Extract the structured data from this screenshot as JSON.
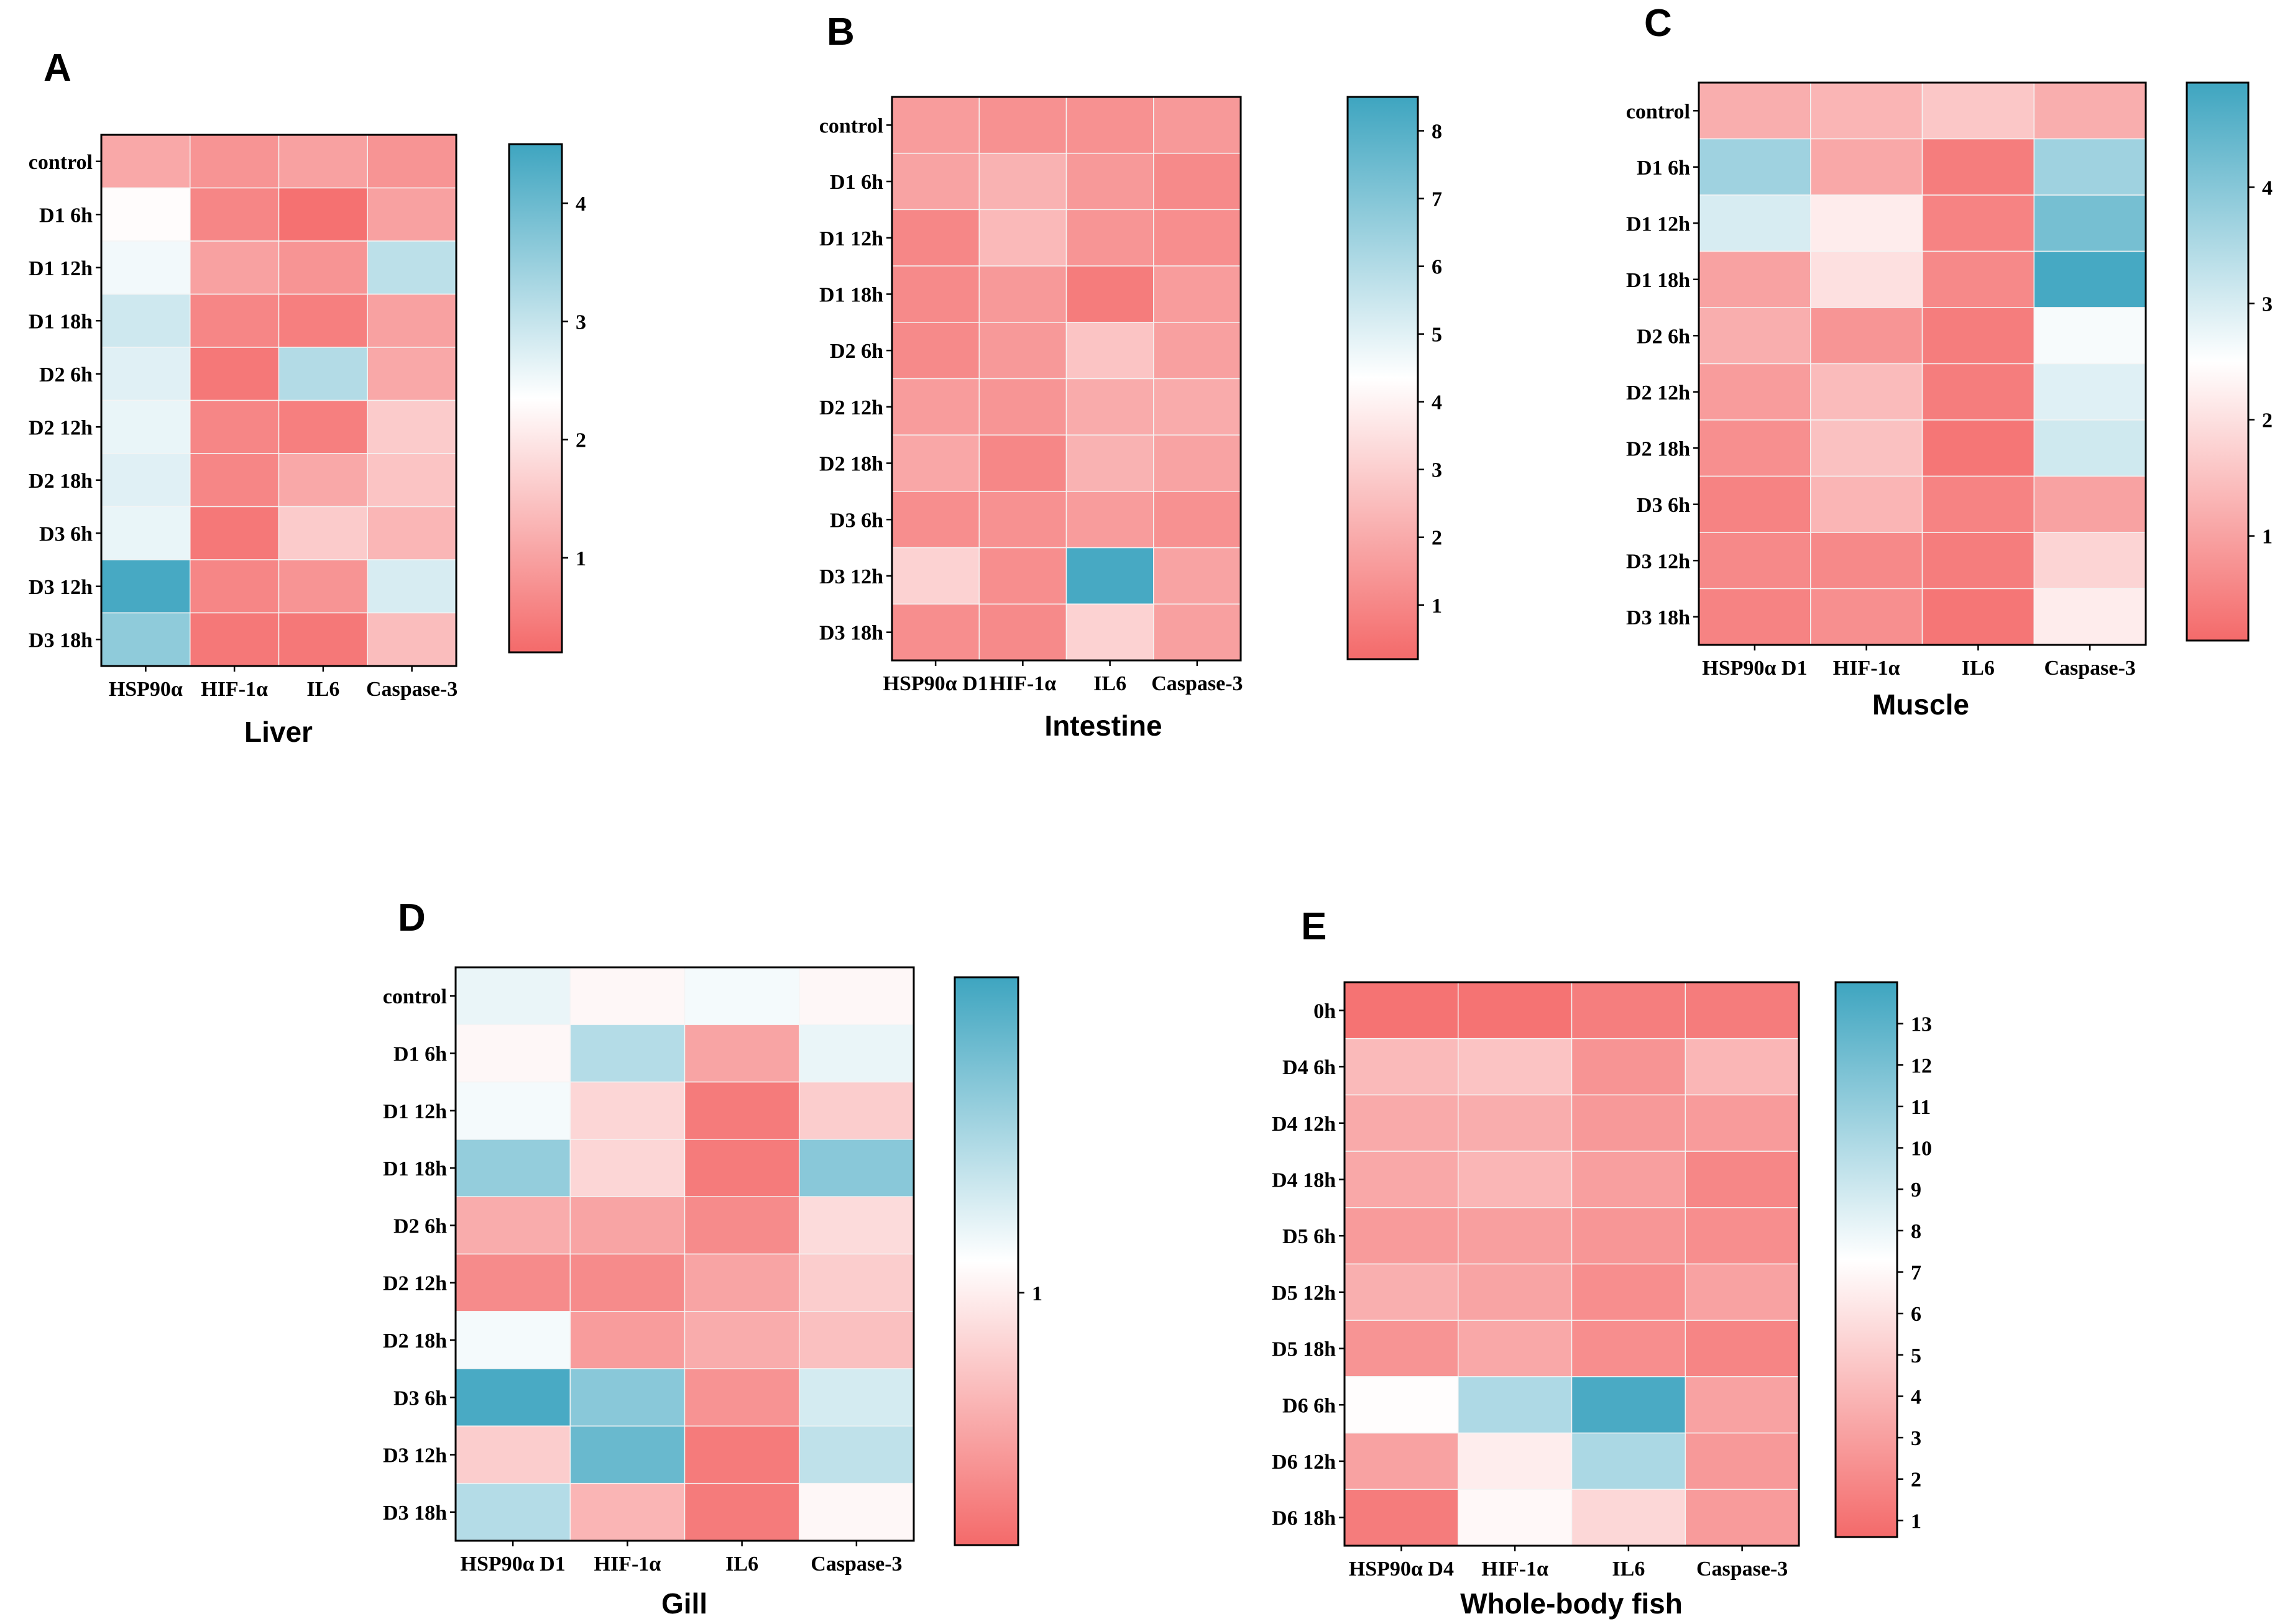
{
  "colors": {
    "low": "#f46a6a",
    "mid": "#ffffff",
    "high": "#3ea5c0"
  },
  "chart_data": [
    {
      "type": "heatmap",
      "panel": "A",
      "title": "Liver",
      "rows": [
        "control",
        "D1 6h",
        "D1 12h",
        "D1 18h",
        "D2 6h",
        "D2 12h",
        "D2 18h",
        "D3 6h",
        "D3 12h",
        "D3 18h"
      ],
      "columns": [
        "HSP90α",
        "HIF-1α",
        "IL6",
        "Caspase-3"
      ],
      "values": [
        [
          1.1,
          0.8,
          1.0,
          0.8
        ],
        [
          2.3,
          0.6,
          0.3,
          1.0
        ],
        [
          2.5,
          1.0,
          0.8,
          3.1
        ],
        [
          2.9,
          0.6,
          0.5,
          1.0
        ],
        [
          2.7,
          0.4,
          3.2,
          1.1
        ],
        [
          2.6,
          0.6,
          0.5,
          1.6
        ],
        [
          2.7,
          0.6,
          1.1,
          1.5
        ],
        [
          2.6,
          0.4,
          1.6,
          1.3
        ],
        [
          4.4,
          0.6,
          0.8,
          2.8
        ],
        [
          3.6,
          0.4,
          0.4,
          1.4
        ]
      ],
      "colorbar": {
        "min": 0.2,
        "max": 4.5,
        "ticks": [
          1,
          2,
          3,
          4
        ]
      }
    },
    {
      "type": "heatmap",
      "panel": "B",
      "title": "Intestine",
      "rows": [
        "control",
        "D1 6h",
        "D1 12h",
        "D1 18h",
        "D2 6h",
        "D2 12h",
        "D2 18h",
        "D3 6h",
        "D3 12h",
        "D3 18h"
      ],
      "columns": [
        "HSP90α D1",
        "HIF-1α",
        "IL6",
        "Caspase-3"
      ],
      "values": [
        [
          1.6,
          1.3,
          1.3,
          1.5
        ],
        [
          1.8,
          2.2,
          1.5,
          1.1
        ],
        [
          1.0,
          2.4,
          1.4,
          1.2
        ],
        [
          1.1,
          1.5,
          0.7,
          1.6
        ],
        [
          1.1,
          1.5,
          2.7,
          1.7
        ],
        [
          1.6,
          1.4,
          2.0,
          2.0
        ],
        [
          1.9,
          1.0,
          2.2,
          1.8
        ],
        [
          1.2,
          1.3,
          1.6,
          1.3
        ],
        [
          3.1,
          1.2,
          8.3,
          1.8
        ],
        [
          1.2,
          1.1,
          3.1,
          1.7
        ]
      ],
      "colorbar": {
        "min": 0.2,
        "max": 8.5,
        "ticks": [
          1,
          2,
          3,
          4,
          5,
          6,
          7,
          8
        ]
      }
    },
    {
      "type": "heatmap",
      "panel": "C",
      "title": "Muscle",
      "rows": [
        "control",
        "D1 6h",
        "D1 12h",
        "D1 18h",
        "D2 6h",
        "D2 12h",
        "D2 18h",
        "D3 6h",
        "D3 12h",
        "D3 18h"
      ],
      "columns": [
        "HSP90α D1",
        "HIF-1α",
        "IL6",
        "Caspase-3"
      ],
      "values": [
        [
          1.2,
          1.3,
          1.6,
          1.2
        ],
        [
          3.7,
          1.1,
          0.4,
          3.7
        ],
        [
          3.0,
          2.2,
          0.5,
          4.2
        ],
        [
          1.0,
          2.0,
          0.6,
          4.8
        ],
        [
          1.2,
          0.8,
          0.4,
          2.6
        ],
        [
          0.9,
          1.4,
          0.4,
          2.9
        ],
        [
          0.7,
          1.5,
          0.3,
          3.1
        ],
        [
          0.5,
          1.3,
          0.5,
          1.0
        ],
        [
          0.6,
          0.6,
          0.4,
          1.8
        ],
        [
          0.5,
          0.7,
          0.3,
          2.2
        ]
      ],
      "colorbar": {
        "min": 0.1,
        "max": 4.9,
        "ticks": [
          1,
          2,
          3,
          4
        ]
      }
    },
    {
      "type": "heatmap",
      "panel": "D",
      "title": "Gill",
      "rows": [
        "control",
        "D1 6h",
        "D1 12h",
        "D1 18h",
        "D2 6h",
        "D2 12h",
        "D2 18h",
        "D3 6h",
        "D3 12h",
        "D3 18h"
      ],
      "columns": [
        "HSP90α D1",
        "HIF-1α",
        "IL6",
        "Caspase-3"
      ],
      "values": [
        [
          1.2,
          1.05,
          1.15,
          1.05
        ],
        [
          1.05,
          1.45,
          0.55,
          1.2
        ],
        [
          1.15,
          0.85,
          0.3,
          0.8
        ],
        [
          1.6,
          0.85,
          0.3,
          1.65
        ],
        [
          0.6,
          0.55,
          0.4,
          0.88
        ],
        [
          0.4,
          0.4,
          0.55,
          0.8
        ],
        [
          1.15,
          0.5,
          0.6,
          0.72
        ],
        [
          1.95,
          1.65,
          0.45,
          1.3
        ],
        [
          0.8,
          1.8,
          0.3,
          1.4
        ],
        [
          1.45,
          0.65,
          0.3,
          1.05
        ]
      ],
      "colorbar": {
        "min": 0.2,
        "max": 2.0,
        "ticks": [
          1
        ]
      }
    },
    {
      "type": "heatmap",
      "panel": "E",
      "title": "Whole-body fish",
      "rows": [
        "0h",
        "D4 6h",
        "D4 12h",
        "D4 18h",
        "D5 6h",
        "D5 12h",
        "D5 18h",
        "D6 6h",
        "D6 12h",
        "D6 18h"
      ],
      "columns": [
        "HSP90α D4",
        "HIF-1α",
        "IL6",
        "Caspase-3"
      ],
      "values": [
        [
          1.0,
          1.0,
          1.5,
          1.4
        ],
        [
          4.2,
          4.6,
          2.5,
          4.0
        ],
        [
          3.5,
          3.6,
          2.7,
          2.8
        ],
        [
          3.4,
          4.0,
          3.0,
          1.9
        ],
        [
          2.8,
          3.0,
          2.6,
          2.2
        ],
        [
          3.7,
          3.2,
          2.2,
          3.1
        ],
        [
          2.5,
          3.4,
          2.2,
          1.8
        ],
        [
          7.2,
          10.1,
          13.6,
          3.1
        ],
        [
          3.1,
          6.5,
          10.2,
          2.7
        ],
        [
          1.4,
          7.0,
          5.5,
          2.8
        ]
      ],
      "colorbar": {
        "min": 0.6,
        "max": 14.0,
        "ticks": [
          1,
          2,
          3,
          4,
          5,
          6,
          7,
          8,
          9,
          10,
          11,
          12,
          13
        ]
      }
    }
  ]
}
